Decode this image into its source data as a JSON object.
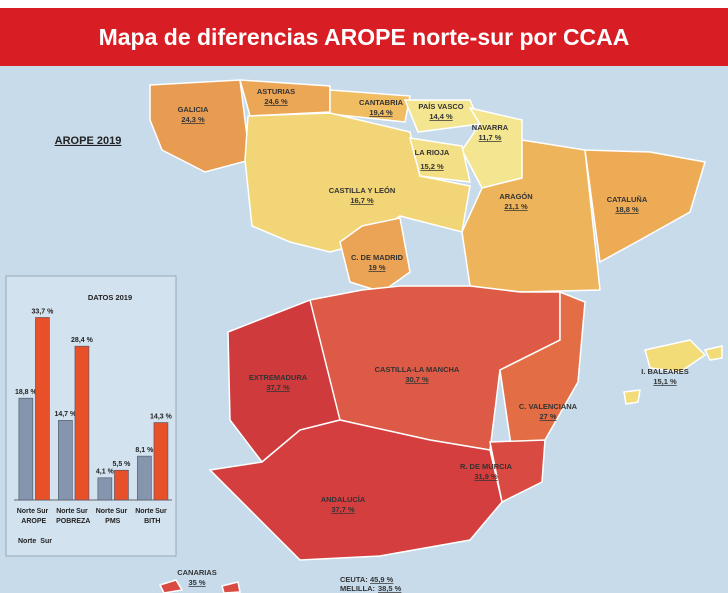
{
  "title": "Mapa de diferencias AROPE norte-sur por CCAA",
  "map": {
    "label": "AROPE 2019",
    "regions": [
      {
        "name": "GALICIA",
        "label": "24,3 %"
      },
      {
        "name": "ASTURIAS",
        "label": "24,6 %"
      },
      {
        "name": "CANTABRIA",
        "label": "19,4 %"
      },
      {
        "name": "PAÍS VASCO",
        "label": "14,4 %"
      },
      {
        "name": "NAVARRA",
        "label": "11,7 %"
      },
      {
        "name": "LA RIOJA",
        "label": "15,2 %"
      },
      {
        "name": "CASTILLA Y LEÓN",
        "label": "16,7 %"
      },
      {
        "name": "ARAGÓN",
        "label": "21,1 %"
      },
      {
        "name": "CATALUÑA",
        "label": "18,8 %"
      },
      {
        "name": "C. DE MADRID",
        "label": "19 %"
      },
      {
        "name": "EXTREMADURA",
        "label": "37,7 %"
      },
      {
        "name": "CASTILLA-LA MANCHA",
        "label": "30,7 %"
      },
      {
        "name": "C. VALENCIANA",
        "label": "27 %"
      },
      {
        "name": "R. DE MURCIA",
        "label": "31,9 %"
      },
      {
        "name": "ANDALUCÍA",
        "label": "37,7 %"
      },
      {
        "name": "I. BALEARES",
        "label": "15,1 %"
      },
      {
        "name": "CANARIAS",
        "label": "35 %"
      },
      {
        "name": "CEUTA:",
        "label": "45,9 %"
      },
      {
        "name": "MELILLA:",
        "label": "38,5 %"
      }
    ]
  },
  "chart_data": {
    "type": "bar",
    "title": "DATOS 2019",
    "categories": [
      "AROPE",
      "POBREZA",
      "PMS",
      "BITH"
    ],
    "series": [
      {
        "name": "Norte",
        "color": "#8595ae",
        "values": [
          18.8,
          14.7,
          4.1,
          8.1
        ],
        "value_labels": [
          "18,8 %",
          "14,7 %",
          "4,1 %",
          "8,1 %"
        ]
      },
      {
        "name": "Sur",
        "color": "#e8502a",
        "values": [
          33.7,
          28.4,
          5.5,
          14.3
        ],
        "value_labels": [
          "33,7 %",
          "28,4 %",
          "5,5 %",
          "14,3 %"
        ]
      }
    ],
    "ylim": [
      0,
      36
    ]
  }
}
